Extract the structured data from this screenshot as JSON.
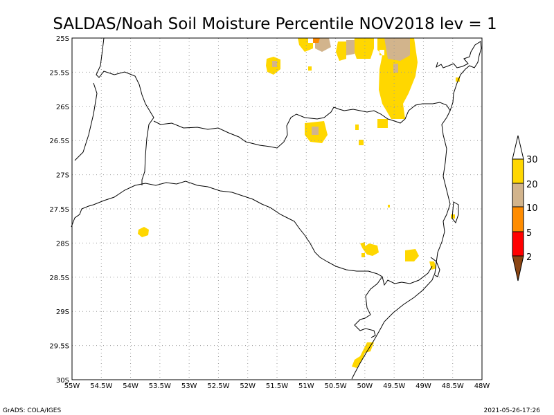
{
  "title": "SALDAS/Noah Soil Moisture Percentile NOV2018 lev = 1",
  "footer": {
    "left": "GrADS: COLA/IGES",
    "right": "2021-05-26-17:26"
  },
  "map": {
    "lon_range": [
      -55,
      -48
    ],
    "lat_range": [
      -30,
      -25
    ],
    "lon_ticks": [
      "55W",
      "54.5W",
      "54W",
      "53.5W",
      "53W",
      "52.5W",
      "52W",
      "51.5W",
      "51W",
      "50.5W",
      "50W",
      "49.5W",
      "49W",
      "48.5W",
      "48W"
    ],
    "lat_ticks": [
      "25S",
      "25.5S",
      "26S",
      "26.5S",
      "27S",
      "27.5S",
      "28S",
      "28.5S",
      "29S",
      "29.5S",
      "30S"
    ],
    "grid": true
  },
  "legend": {
    "labels": [
      "30",
      "20",
      "10",
      "5",
      "2"
    ],
    "colors": {
      "top_arrow": "#ffffff",
      "c20_30": "#ffd700",
      "c10_20": "#d2b48c",
      "c5_10": "#ff8c00",
      "c2_5": "#ff0000",
      "below2": "#8b4513"
    }
  },
  "colors": {
    "yellow": "#ffd700",
    "tan": "#d2b48c",
    "orange": "#ff8c00"
  }
}
